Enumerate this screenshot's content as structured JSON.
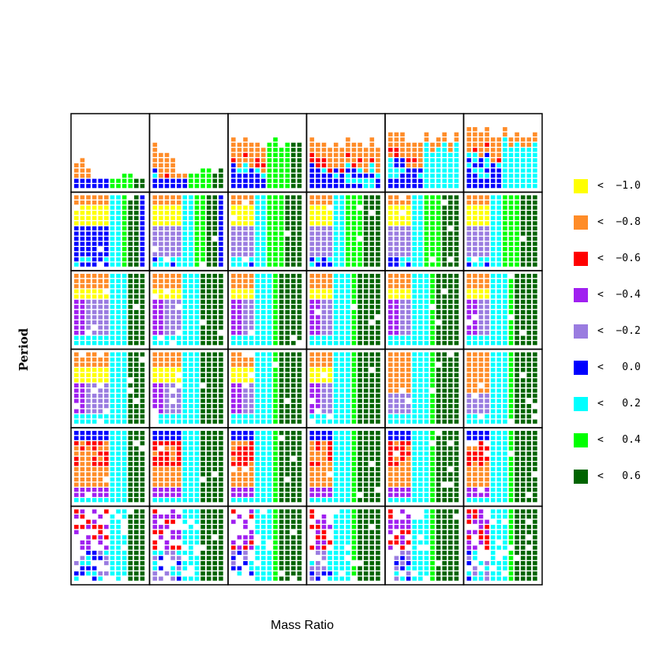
{
  "chart_data": {
    "type": "heatmap",
    "xlabel": "Mass Ratio",
    "ylabel": "Period",
    "panel_rows": 6,
    "panel_cols": 6,
    "grid_cols_per_panel": 12,
    "grid_rows_per_panel": 14,
    "color_scale": [
      {
        "label": "<  −1.0",
        "color": "#FFFF00"
      },
      {
        "label": "<  −0.8",
        "color": "#FF8C28"
      },
      {
        "label": "<  −0.6",
        "color": "#FF0000"
      },
      {
        "label": "<  −0.4",
        "color": "#A020F0"
      },
      {
        "label": "<  −0.2",
        "color": "#9A7CE0"
      },
      {
        "label": "<   0.0",
        "color": "#0000FF"
      },
      {
        "label": "<   0.2",
        "color": "#00FFFF"
      },
      {
        "label": "<   0.4",
        "color": "#00FF00"
      },
      {
        "label": "<   0.6",
        "color": "#006400"
      }
    ],
    "panels": [
      "..............|..............|..............|..............|..............|..............|..............|..............|..............|..............|..............|..............",
      "..............|..............|..............|..............|..............|..............|..............|..............|..............|..............|..............|..............",
      "..............|..............|..............|..............|..............|..............|..............|..............|..............|..............|..............|..............",
      "..............|..............|..............|..............|..............|..............|..............|..............|..............|..............|..............|..............",
      "..............|..............|..............|..............|..............|..............|..............|..............|..............|..............|..............|..............",
      "..............|..............|..............|..............|..............|..............|..............|..............|..............|..............|..............|.............."
    ]
  }
}
